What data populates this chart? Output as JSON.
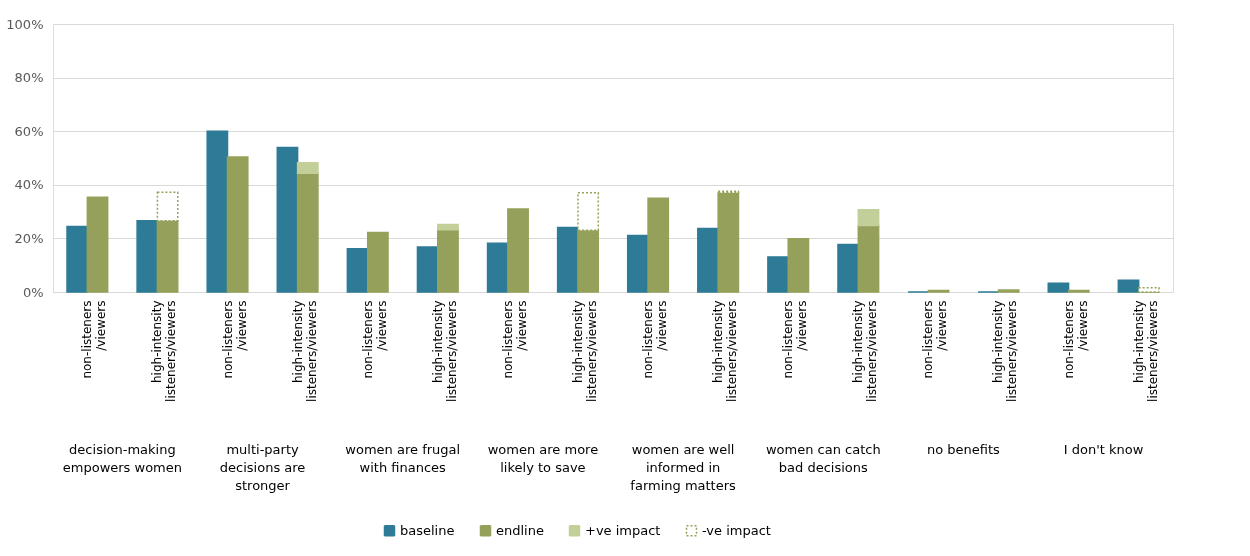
{
  "chart_data": {
    "type": "bar",
    "categories": [
      "non-listeners /viewers",
      "high-intensity listeners/viewers",
      "non-listeners /viewers",
      "high-intensity listeners/viewers",
      "non-listeners /viewers",
      "high-intensity listeners/viewers",
      "non-listeners /viewers",
      "high-intensity listeners/viewers",
      "non-listeners /viewers",
      "high-intensity listeners/viewers",
      "non-listeners /viewers",
      "high-intensity listeners/viewers",
      "non-listeners /viewers",
      "high-intensity listeners/viewers",
      "non-listeners /viewers",
      "high-intensity listeners/viewers"
    ],
    "series": [
      {
        "name": "baseline",
        "color": "#2e7b97",
        "values": [
          24.4,
          26.6,
          60,
          53.9,
          16.1,
          16.8,
          18.2,
          24.1,
          21.1,
          23.7,
          13.1,
          17.7,
          0,
          0,
          3.3,
          4.4
        ]
      },
      {
        "name": "endline",
        "color": "#95a15a",
        "values": [
          35.4,
          26.6,
          50.4,
          44.3,
          22.2,
          23.2,
          31.0,
          23.0,
          35.0,
          37.0,
          19.9,
          24.8,
          0.6,
          0.7,
          0.6,
          0
        ]
      },
      {
        "name": "+ve impact",
        "color": "#c3cf98",
        "values": [
          null,
          null,
          null,
          3.9,
          null,
          2.0,
          null,
          null,
          null,
          null,
          null,
          5.9,
          null,
          null,
          null,
          null
        ],
        "base": [
          null,
          null,
          null,
          44.3,
          null,
          23.2,
          null,
          null,
          null,
          null,
          null,
          24.8,
          null,
          null,
          null,
          null
        ]
      },
      {
        "name": "-ve impact",
        "color": "#95a15a",
        "line_style": "dotted",
        "values": [
          null,
          10.6,
          null,
          null,
          null,
          null,
          null,
          14.0,
          null,
          0.6,
          null,
          null,
          null,
          null,
          null,
          1.6
        ],
        "base": [
          null,
          26.6,
          null,
          null,
          null,
          null,
          null,
          23.0,
          null,
          37.0,
          null,
          null,
          null,
          null,
          null,
          0
        ]
      }
    ],
    "ylim": [
      0,
      100
    ],
    "yticks": [
      {
        "value": 0,
        "label": "0%"
      },
      {
        "value": 20,
        "label": "20%"
      },
      {
        "value": 40,
        "label": "40%"
      },
      {
        "value": 60,
        "label": "60%"
      },
      {
        "value": 80,
        "label": "80%"
      },
      {
        "value": 100,
        "label": "100%"
      }
    ],
    "grid": "y",
    "legend": "bottom",
    "annotations": [
      "decision-making empowers women",
      "multi-party decisions are stronger",
      "women are frugal with finances",
      "women are more likely to save",
      "women are well informed in farming matters",
      "women can catch bad decisions",
      "no benefits",
      "I don't know"
    ]
  }
}
